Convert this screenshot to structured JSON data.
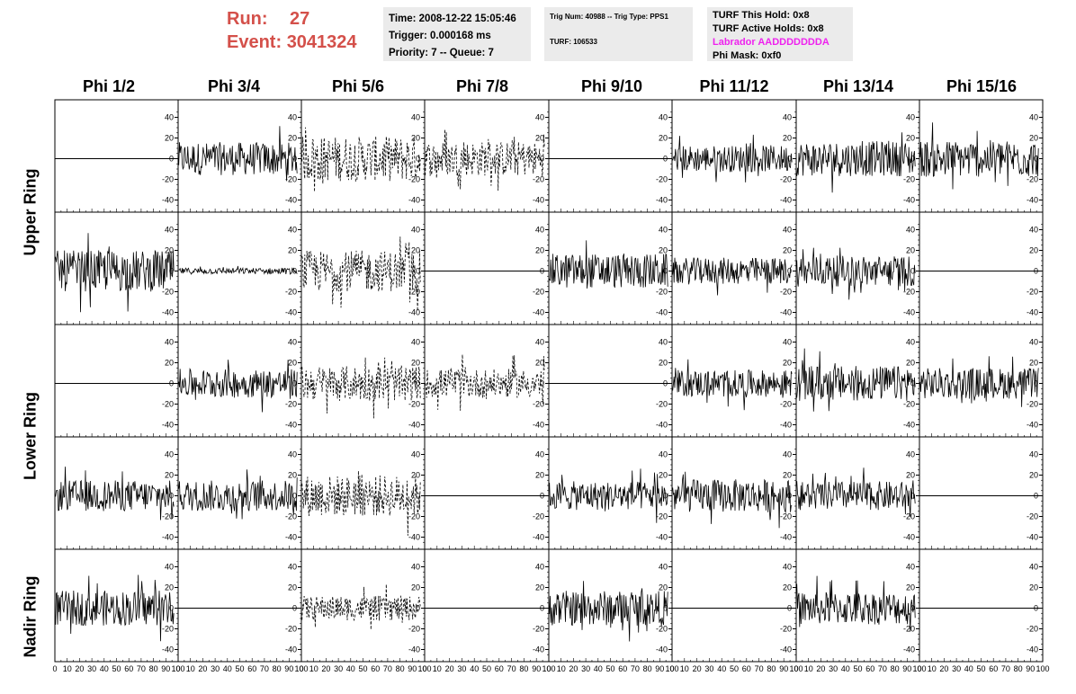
{
  "header": {
    "run_label": "Run:",
    "run_value": "27",
    "event_label": "Event:",
    "event_value": "3041324"
  },
  "time_box": {
    "time": "Time: 2008-12-22 15:05:46",
    "trigger": "Trigger: 0.000168 ms",
    "priority": "Priority: 7 -- Queue: 7"
  },
  "trig_box": {
    "trig": "Trig Num: 40988 -- Trig Type: PPS1",
    "turf": "TURF: 106533"
  },
  "turf_box": {
    "this_hold": "TURF This Hold: 0x8",
    "active_holds": "TURF Active Holds: 0x8",
    "labrador": "Labrador AADDDDDDDA",
    "labrador_color": "#ee22ee",
    "phi_mask": "Phi Mask: 0xf0"
  },
  "colors": {
    "run_text": "#d4504a",
    "info_bg": "#ebebeb"
  },
  "chart_data": {
    "type": "line",
    "columns": [
      "Phi 1/2",
      "Phi 3/4",
      "Phi 5/6",
      "Phi 7/8",
      "Phi 9/10",
      "Phi 11/12",
      "Phi 13/14",
      "Phi 15/16"
    ],
    "rows": [
      "Upper Ring",
      "Lower Ring",
      "Nadir Ring"
    ],
    "panel_rows": 5,
    "xlim": [
      0,
      100
    ],
    "ylim": [
      -50,
      50
    ],
    "x_ticks": [
      "0",
      "10",
      "20",
      "30",
      "40",
      "50",
      "60",
      "70",
      "80",
      "90",
      "100"
    ],
    "y_ticks": [
      "40",
      "20",
      "0",
      "-20",
      "-40"
    ],
    "panels": [
      [
        {
          "mode": "flat"
        },
        {
          "mode": "noise",
          "amp": 16
        },
        {
          "mode": "dashed",
          "amp": 22
        },
        {
          "mode": "dashed",
          "amp": 17
        },
        {
          "mode": "flat"
        },
        {
          "mode": "noise",
          "amp": 13
        },
        {
          "mode": "noise",
          "amp": 17
        },
        {
          "mode": "noise",
          "amp": 18
        }
      ],
      [
        {
          "mode": "noise",
          "amp": 20
        },
        {
          "mode": "noise",
          "amp": 3
        },
        {
          "mode": "dashed",
          "amp": 20
        },
        {
          "mode": "flat"
        },
        {
          "mode": "noise",
          "amp": 17
        },
        {
          "mode": "noise",
          "amp": 13
        },
        {
          "mode": "noise",
          "amp": 15
        },
        {
          "mode": "flat"
        }
      ],
      [
        {
          "mode": "flat"
        },
        {
          "mode": "noise",
          "amp": 14
        },
        {
          "mode": "dashed",
          "amp": 17
        },
        {
          "mode": "dashed",
          "amp": 14
        },
        {
          "mode": "flat"
        },
        {
          "mode": "noise",
          "amp": 13
        },
        {
          "mode": "noise",
          "amp": 17
        },
        {
          "mode": "noise",
          "amp": 15
        }
      ],
      [
        {
          "mode": "noise",
          "amp": 15
        },
        {
          "mode": "noise",
          "amp": 15
        },
        {
          "mode": "dashed",
          "amp": 20
        },
        {
          "mode": "flat"
        },
        {
          "mode": "noise",
          "amp": 14
        },
        {
          "mode": "noise",
          "amp": 16
        },
        {
          "mode": "noise",
          "amp": 14
        },
        {
          "mode": "flat"
        }
      ],
      [
        {
          "mode": "noise",
          "amp": 17
        },
        {
          "mode": "flat"
        },
        {
          "mode": "dashed",
          "amp": 12
        },
        {
          "mode": "flat"
        },
        {
          "mode": "noise",
          "amp": 17
        },
        {
          "mode": "flat"
        },
        {
          "mode": "noise",
          "amp": 16
        },
        {
          "mode": "flat"
        }
      ]
    ]
  }
}
